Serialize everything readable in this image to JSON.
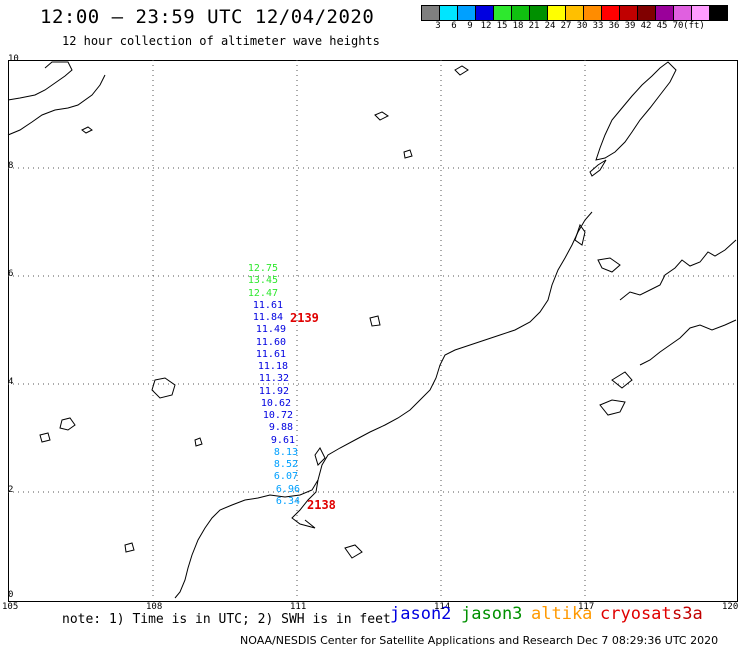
{
  "header": {
    "title": "12:00 – 23:59 UTC 12/04/2020",
    "subtitle": "12 hour collection of altimeter wave heights"
  },
  "colorscale": {
    "colors": [
      "#7f7f7f",
      "#00e5ff",
      "#00a0ff",
      "#0000e0",
      "#2ee82e",
      "#10c010",
      "#009000",
      "#ffff00",
      "#ffbf00",
      "#ff8c00",
      "#ff0000",
      "#c00000",
      "#800000",
      "#9a009a",
      "#e060e0",
      "#ff9cff",
      "#000000"
    ],
    "labels": [
      "3",
      "6",
      "9",
      "12",
      "15",
      "18",
      "21",
      "24",
      "27",
      "30",
      "33",
      "36",
      "39",
      "42",
      "45",
      "70",
      "(ft)"
    ]
  },
  "axes": {
    "x_ticks": [
      "105",
      "108",
      "111",
      "114",
      "117",
      "120"
    ],
    "y_ticks": [
      "10",
      "8",
      "6",
      "4",
      "2",
      "0"
    ]
  },
  "waves": [
    {
      "v": "12.75",
      "c": "#2ee82e"
    },
    {
      "v": "13.45",
      "c": "#2ee82e"
    },
    {
      "v": "12.47",
      "c": "#2ee82e"
    },
    {
      "v": "11.61",
      "c": "#0000e0"
    },
    {
      "v": "11.84",
      "c": "#0000e0"
    },
    {
      "v": "11.49",
      "c": "#0000e0"
    },
    {
      "v": "11.60",
      "c": "#0000e0"
    },
    {
      "v": "11.61",
      "c": "#0000e0"
    },
    {
      "v": "11.18",
      "c": "#0000e0"
    },
    {
      "v": "11.32",
      "c": "#0000e0"
    },
    {
      "v": "11.92",
      "c": "#0000e0"
    },
    {
      "v": "10.62",
      "c": "#0000e0"
    },
    {
      "v": "10.72",
      "c": "#0000e0"
    },
    {
      "v": "9.88",
      "c": "#0000e0"
    },
    {
      "v": "9.61",
      "c": "#0000e0"
    },
    {
      "v": "8.13",
      "c": "#00a0ff"
    },
    {
      "v": "8.52",
      "c": "#00a0ff"
    },
    {
      "v": "6.07",
      "c": "#00a0ff"
    },
    {
      "v": "6.96",
      "c": "#00a0ff"
    },
    {
      "v": "6.34",
      "c": "#00a0ff"
    }
  ],
  "times": [
    "2139",
    "2138"
  ],
  "note": "note: 1) Time is in UTC; 2) SWH is in feet",
  "satellites": [
    {
      "name": "jason2",
      "color": "#0000e0"
    },
    {
      "name": "jason3",
      "color": "#009000"
    },
    {
      "name": "altika",
      "color": "#ff9900"
    },
    {
      "name": "cryosat",
      "color": "#e00000"
    },
    {
      "name": "s3a",
      "color": "#c00000"
    }
  ],
  "credit": "NOAA/NESDIS Center for Satellite Applications and Research    Dec  7 08:29:36 UTC 2020"
}
